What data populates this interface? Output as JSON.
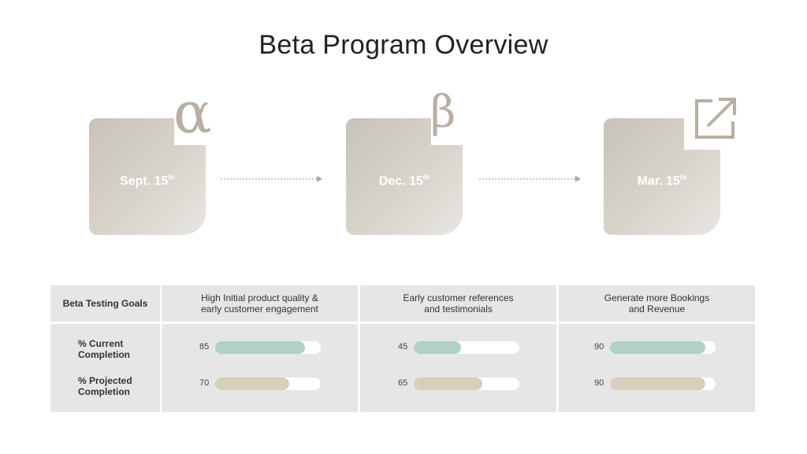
{
  "title": "Beta Program Overview",
  "milestones": [
    {
      "date": "Sept. 15",
      "suffix": "th",
      "symbol": "α",
      "symbol_name": "alpha-icon"
    },
    {
      "date": "Dec. 15",
      "suffix": "th",
      "symbol": "β",
      "symbol_name": "beta-icon"
    },
    {
      "date": "Mar. 15",
      "suffix": "th",
      "symbol": "external-link",
      "symbol_name": "external-link-icon"
    }
  ],
  "table": {
    "row_header": "Beta Testing Goals",
    "goals": [
      "High Initial product quality & early customer engagement",
      "Early customer references and testimonials",
      "Generate more Bookings and Revenue"
    ],
    "rows": [
      {
        "label": "% Current Completion",
        "values": [
          85,
          45,
          90
        ],
        "color": "#afd1c7"
      },
      {
        "label": "% Projected Completion",
        "values": [
          70,
          65,
          90
        ],
        "color": "#d5cfbc"
      }
    ]
  },
  "colors": {
    "card": "#cdc8be",
    "symbol": "#b7b0a3",
    "table_bg": "#e6e6e7",
    "current_bar": "#afd1c7",
    "projected_bar": "#d5cfbc"
  }
}
